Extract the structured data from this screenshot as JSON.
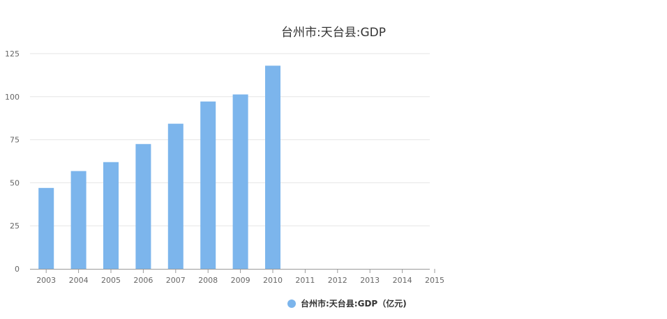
{
  "chart_data": {
    "type": "bar",
    "title": "台州市:天台县:GDP",
    "categories": [
      "2003",
      "2004",
      "2005",
      "2006",
      "2007",
      "2008",
      "2009",
      "2010",
      "2011",
      "2012",
      "2013",
      "2014",
      "2015"
    ],
    "series": [
      {
        "name": "台州市:天台县:GDP（亿元)",
        "values": [
          47.0,
          56.8,
          62.0,
          72.5,
          84.3,
          97.2,
          101.3,
          118.0,
          null,
          null,
          null,
          null,
          null
        ],
        "color": "#7cb5ec"
      }
    ],
    "yticks": [
      "0",
      "25",
      "50",
      "75",
      "100",
      "125"
    ],
    "ylim": [
      0,
      125
    ],
    "grid": true,
    "legend": "bottom-right"
  }
}
